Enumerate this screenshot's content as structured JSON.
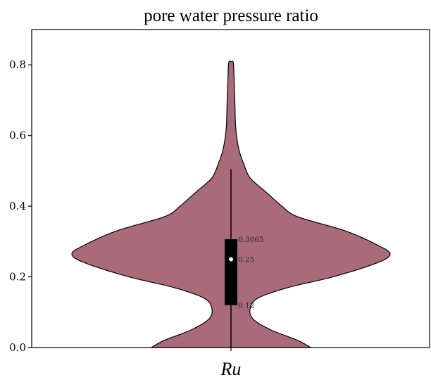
{
  "chart_data": {
    "type": "violin",
    "title": "pore water pressure ratio",
    "xlabel": "Ru",
    "ylabel": "",
    "ylim": [
      0.0,
      0.9
    ],
    "yticks": [
      0.0,
      0.2,
      0.4,
      0.6,
      0.8
    ],
    "ytick_labels": [
      "0.0",
      "0.2",
      "0.4",
      "0.6",
      "0.8"
    ],
    "categories": [
      "Ru"
    ],
    "fill_color": "#a96b7a",
    "box": {
      "q1": 0.12,
      "median": 0.25,
      "q3": 0.3065,
      "whisker_low": 0.0,
      "whisker_high": 0.505
    },
    "annotations": [
      {
        "label": "0.3065",
        "y": 0.3065
      },
      {
        "label": "0.25",
        "y": 0.25
      },
      {
        "label": "0.12",
        "y": 0.12
      }
    ],
    "density_profile": [
      {
        "y": 0.0,
        "w": 0.5
      },
      {
        "y": 0.02,
        "w": 0.42
      },
      {
        "y": 0.05,
        "w": 0.25
      },
      {
        "y": 0.08,
        "w": 0.14
      },
      {
        "y": 0.11,
        "w": 0.12
      },
      {
        "y": 0.14,
        "w": 0.17
      },
      {
        "y": 0.17,
        "w": 0.36
      },
      {
        "y": 0.2,
        "w": 0.64
      },
      {
        "y": 0.24,
        "w": 0.92
      },
      {
        "y": 0.265,
        "w": 1.0
      },
      {
        "y": 0.29,
        "w": 0.92
      },
      {
        "y": 0.33,
        "w": 0.72
      },
      {
        "y": 0.37,
        "w": 0.42
      },
      {
        "y": 0.4,
        "w": 0.32
      },
      {
        "y": 0.44,
        "w": 0.22
      },
      {
        "y": 0.48,
        "w": 0.12
      },
      {
        "y": 0.52,
        "w": 0.08
      },
      {
        "y": 0.56,
        "w": 0.05
      },
      {
        "y": 0.62,
        "w": 0.03
      },
      {
        "y": 0.7,
        "w": 0.024
      },
      {
        "y": 0.78,
        "w": 0.018
      },
      {
        "y": 0.8,
        "w": 0.016
      },
      {
        "y": 0.81,
        "w": 0.012
      }
    ]
  }
}
